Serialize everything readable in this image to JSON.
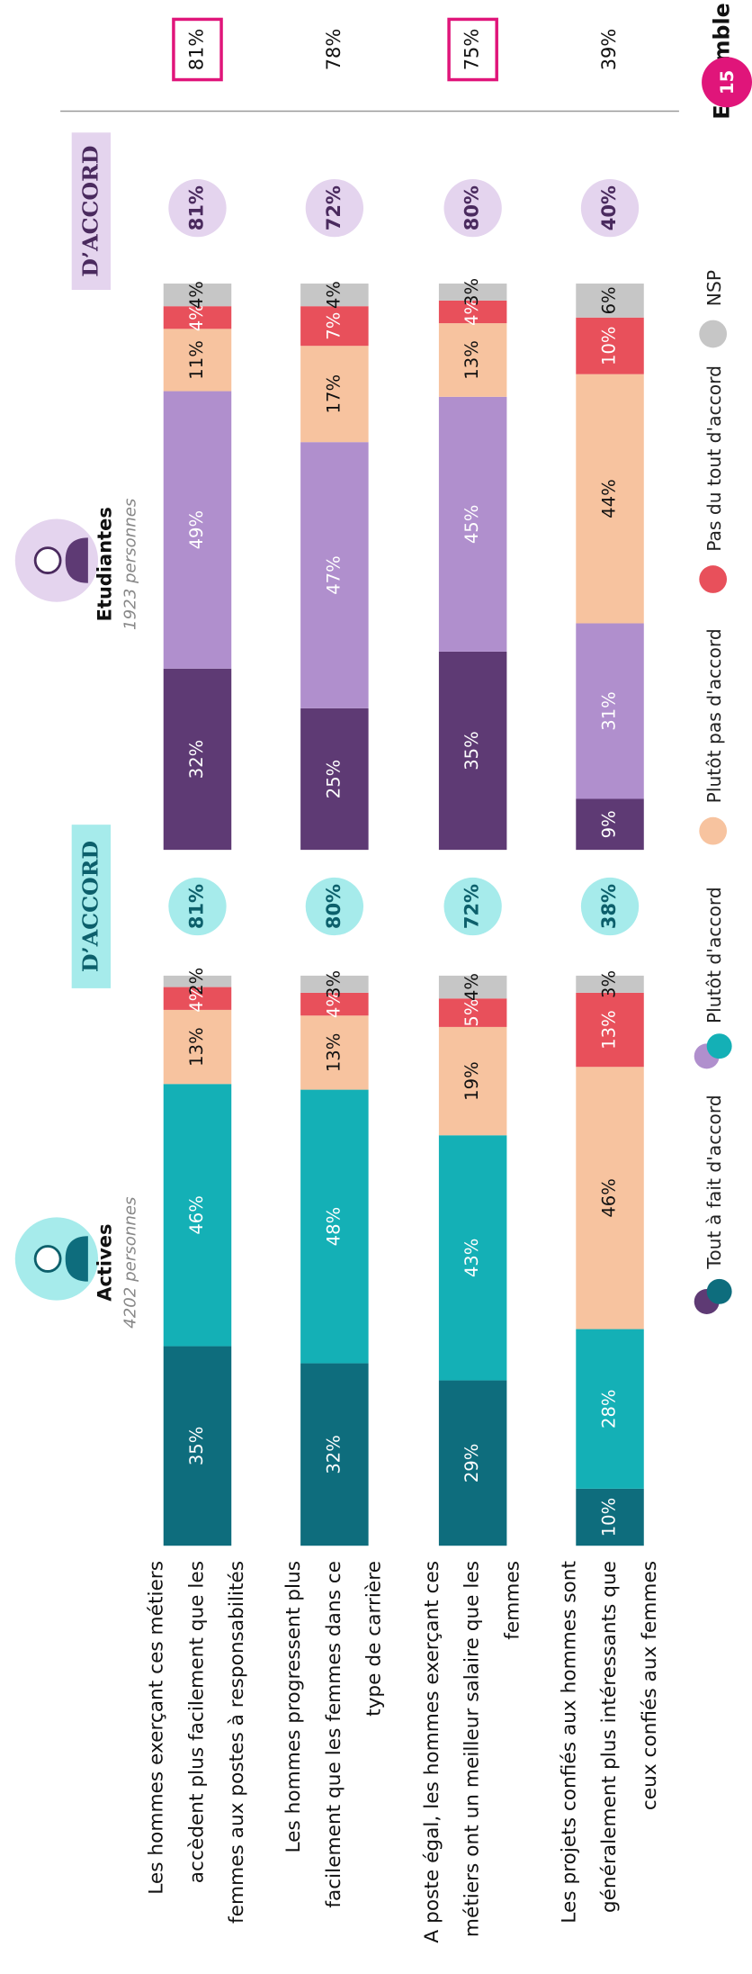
{
  "chart_data": {
    "type": "stacked-bar",
    "page": "15",
    "categories": [
      [
        "Les hommes exerçant ces métiers",
        "accèdent plus facilement que les",
        "femmes aux postes à responsabilités"
      ],
      [
        "Les hommes progressent plus",
        "facilement que les femmes dans ce",
        "type de carrière"
      ],
      [
        "A poste égal, les hommes exerçant ces",
        "métiers ont un meilleur salaire que les",
        "femmes"
      ],
      [
        "Les projets confiés aux hommes sont",
        "généralement plus intéressants que",
        "ceux confiés aux femmes"
      ]
    ],
    "series": [
      {
        "name": "Tout à fait d'accord",
        "colors": [
          "#0e6d7d",
          "#5e3a74"
        ]
      },
      {
        "name": "Plutôt d'accord",
        "colors": [
          "#14b0b6",
          "#b08fcd"
        ]
      },
      {
        "name": "Plutôt pas d'accord",
        "colors": [
          "#f7c39f",
          "#f7c39f"
        ]
      },
      {
        "name": "Pas du tout d'accord",
        "colors": [
          "#e8505b",
          "#e8505b"
        ]
      },
      {
        "name": "NSP",
        "colors": [
          "#c6c6c6",
          "#c6c6c6"
        ]
      }
    ],
    "groups": [
      {
        "title": "Actives",
        "subtitle": "4202 personnes",
        "badge": "D’ACCORD",
        "badge_color": "#a6ebeb",
        "agree_text_color": "#0c5f6b",
        "values": [
          [
            35,
            46,
            13,
            4,
            2
          ],
          [
            32,
            48,
            13,
            4,
            3
          ],
          [
            29,
            43,
            19,
            5,
            4
          ],
          [
            10,
            28,
            46,
            13,
            3
          ]
        ],
        "value_labels": [
          [
            "35%",
            "46%",
            "13%",
            "4%",
            "2%"
          ],
          [
            "32%",
            "48%",
            "13%",
            "4%",
            "3%"
          ],
          [
            "29%",
            "43%",
            "19%",
            "5%",
            "4%"
          ],
          [
            "10%",
            "28%",
            "46%",
            "13%",
            "3%"
          ]
        ],
        "agree": [
          81,
          80,
          72,
          38
        ],
        "agree_labels": [
          "81%",
          "80%",
          "72%",
          "38%"
        ]
      },
      {
        "title": "Etudiantes",
        "subtitle": "1923 personnes",
        "badge": "D’ACCORD",
        "badge_color": "#e4d4ee",
        "agree_text_color": "#4a2a5e",
        "values": [
          [
            32,
            49,
            11,
            4,
            4
          ],
          [
            25,
            47,
            17,
            7,
            4
          ],
          [
            35,
            45,
            13,
            4,
            3
          ],
          [
            9,
            31,
            44,
            10,
            6
          ]
        ],
        "value_labels": [
          [
            "32%",
            "49%",
            "11%",
            "4%",
            "4%"
          ],
          [
            "25%",
            "47%",
            "17%",
            "7%",
            "4%"
          ],
          [
            "35%",
            "45%",
            "13%",
            "4%",
            "3%"
          ],
          [
            "9%",
            "31%",
            "44%",
            "10%",
            "6%"
          ]
        ],
        "agree": [
          81,
          72,
          80,
          40
        ],
        "agree_labels": [
          "81%",
          "72%",
          "80%",
          "40%"
        ]
      }
    ],
    "ensemble": {
      "title": "Ensemble",
      "values": [
        81,
        78,
        75,
        39
      ],
      "value_labels": [
        "81%",
        "78%",
        "75%",
        "39%"
      ],
      "highlight": [
        true,
        false,
        true,
        false
      ],
      "highlight_color": "#e0157a"
    }
  }
}
